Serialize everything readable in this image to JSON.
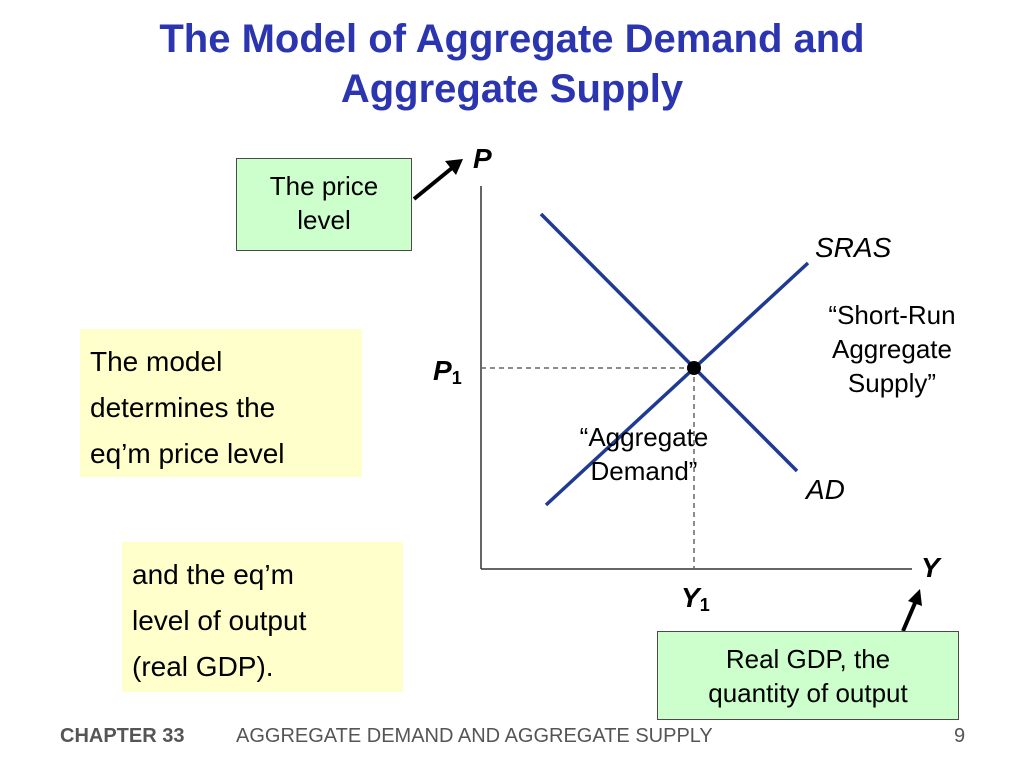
{
  "slide": {
    "title_line1": "The Model of Aggregate Demand and",
    "title_line2": "Aggregate Supply"
  },
  "callouts": {
    "price_level_line1": "The price",
    "price_level_line2": "level",
    "real_gdp_line1": "Real GDP,  the",
    "real_gdp_line2": "quantity of output",
    "model_line1": "The model",
    "model_line2": "determines the",
    "model_line3": "eq’m price level",
    "output_line1": "and the eq’m",
    "output_line2": "level of output",
    "output_line3": "(real GDP)."
  },
  "diagram": {
    "y_axis_label": "P",
    "x_axis_label": "Y",
    "price_eq_label": "P",
    "price_eq_subscript": "1",
    "output_eq_label": "Y",
    "output_eq_subscript": "1",
    "sras_label": "SRAS",
    "sras_desc_line1": "“Short-Run",
    "sras_desc_line2": "Aggregate",
    "sras_desc_line3": "Supply”",
    "ad_label": "AD",
    "ad_desc_line1": "“Aggregate",
    "ad_desc_line2": "Demand”",
    "curve_color": "#1f3a93",
    "callout_green": "#ccffcc",
    "callout_yellow": "#ffffcc",
    "title_color": "#2b35b0"
  },
  "footer": {
    "chapter": "CHAPTER 33",
    "chapter_title": "AGGREGATE DEMAND AND AGGREGATE SUPPLY",
    "page": "9"
  }
}
